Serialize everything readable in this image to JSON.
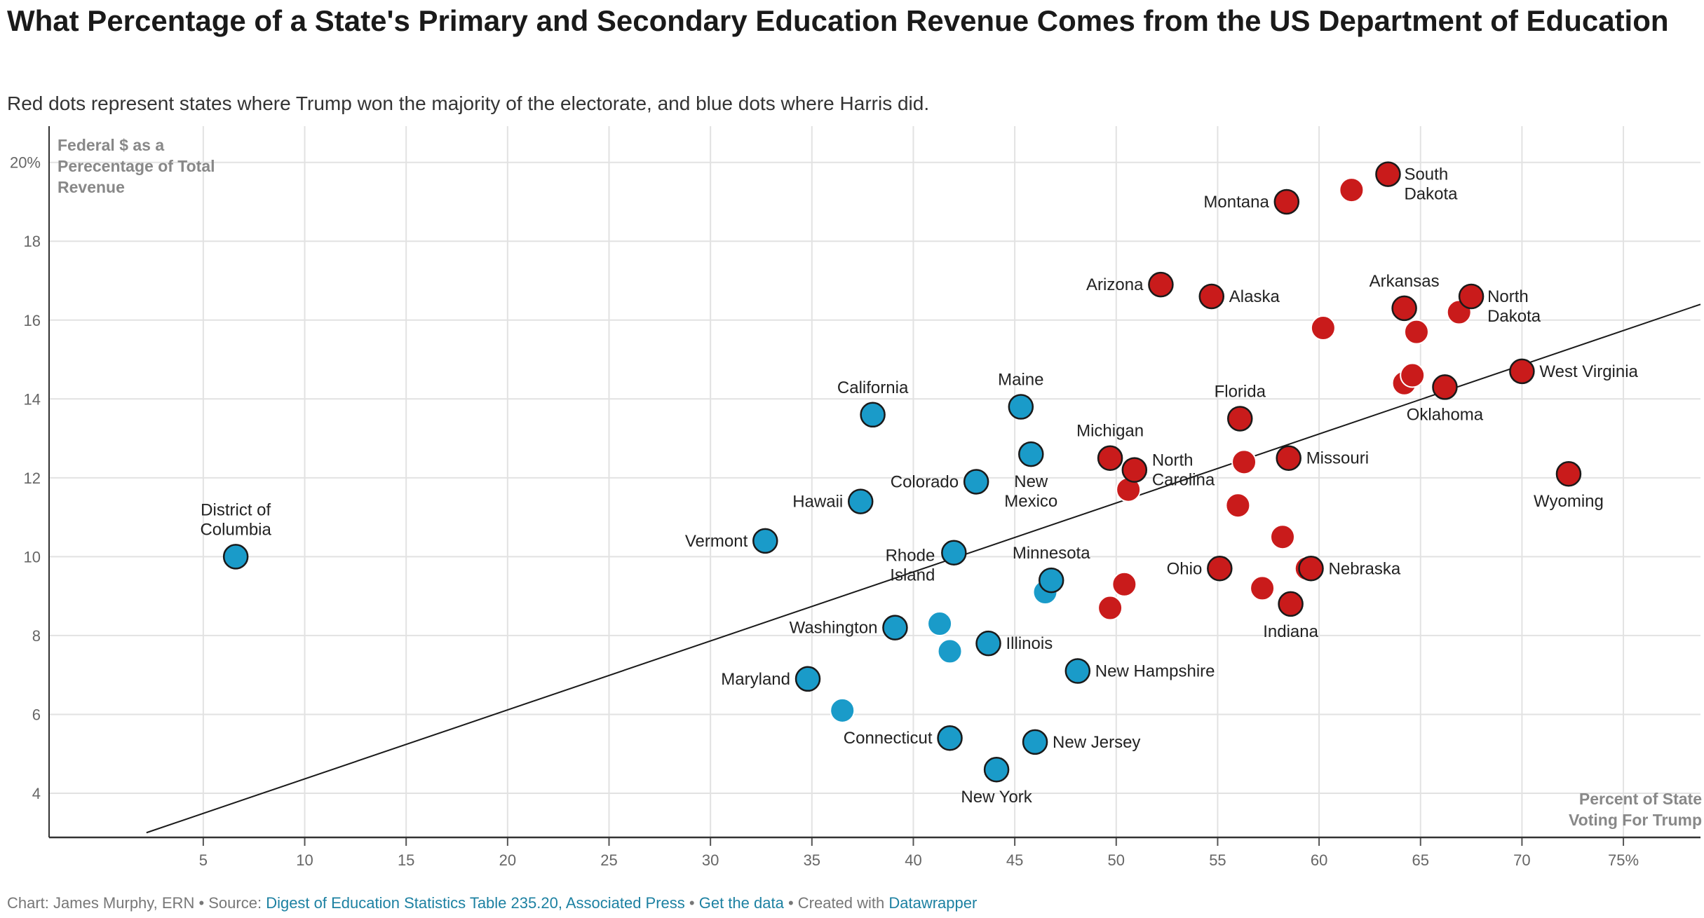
{
  "title": "What Percentage of a State's Primary and Secondary Education Revenue Comes from the US Department of Education",
  "subtitle": "Red dots represent states where Trump won the majority of the electorate, and blue dots where Harris did.",
  "footer": {
    "prefix": "Chart: James Murphy, ERN • Source: ",
    "source": "Digest of Education Statistics Table 235.20, Associated Press",
    "sep1": " • ",
    "getdata": "Get the data",
    "sep2": " • Created with ",
    "tool": "Datawrapper"
  },
  "colors": {
    "trump": "#c91b1b",
    "harris": "#1a9bc9",
    "grid": "#e2e2e2"
  },
  "chart_data": {
    "type": "scatter",
    "xlabel": [
      "Percent of State",
      "Voting For Trump"
    ],
    "ylabel": [
      "Federal $ as a",
      "Perecentage of Total",
      "Revenue"
    ],
    "xlim": [
      0,
      80
    ],
    "ylim": [
      3,
      21
    ],
    "xticks": [
      5,
      10,
      15,
      20,
      25,
      30,
      35,
      40,
      45,
      50,
      55,
      60,
      65,
      70,
      75
    ],
    "xtick_labels": [
      "5",
      "10",
      "15",
      "20",
      "25",
      "30",
      "35",
      "40",
      "45",
      "50",
      "55",
      "60",
      "65",
      "70",
      "75%"
    ],
    "yticks": [
      4,
      6,
      8,
      10,
      12,
      14,
      16,
      18,
      20
    ],
    "ytick_labels": [
      "4",
      "6",
      "8",
      "10",
      "12",
      "14",
      "16",
      "18",
      "20%"
    ],
    "grid": true,
    "trendline": [
      [
        2.2,
        3.0
      ],
      [
        78.8,
        16.4
      ]
    ],
    "points": [
      {
        "x": 6.6,
        "y": 10.0,
        "party": "harris",
        "label": [
          "District of",
          "Columbia"
        ],
        "pos": "above"
      },
      {
        "x": 32.7,
        "y": 10.4,
        "party": "harris",
        "label": [
          "Vermont"
        ],
        "pos": "left"
      },
      {
        "x": 34.8,
        "y": 6.9,
        "party": "harris",
        "label": [
          "Maryland"
        ],
        "pos": "left"
      },
      {
        "x": 36.5,
        "y": 6.1,
        "party": "harris",
        "label": [],
        "pos": "none"
      },
      {
        "x": 37.4,
        "y": 11.4,
        "party": "harris",
        "label": [
          "Hawaii"
        ],
        "pos": "left"
      },
      {
        "x": 38.0,
        "y": 13.6,
        "party": "harris",
        "label": [
          "California"
        ],
        "pos": "above"
      },
      {
        "x": 39.1,
        "y": 8.2,
        "party": "harris",
        "label": [
          "Washington"
        ],
        "pos": "left"
      },
      {
        "x": 41.3,
        "y": 8.3,
        "party": "harris",
        "label": [],
        "pos": "none"
      },
      {
        "x": 41.8,
        "y": 7.6,
        "party": "harris",
        "label": [],
        "pos": "none"
      },
      {
        "x": 41.8,
        "y": 5.4,
        "party": "harris",
        "label": [
          "Connecticut"
        ],
        "pos": "left"
      },
      {
        "x": 42.0,
        "y": 10.1,
        "party": "harris",
        "label": [
          "Rhode",
          "Island"
        ],
        "pos": "belowleft"
      },
      {
        "x": 43.1,
        "y": 11.9,
        "party": "harris",
        "label": [
          "Colorado"
        ],
        "pos": "left"
      },
      {
        "x": 43.7,
        "y": 7.8,
        "party": "harris",
        "label": [
          "Illinois"
        ],
        "pos": "right"
      },
      {
        "x": 44.1,
        "y": 4.6,
        "party": "harris",
        "label": [
          "New York"
        ],
        "pos": "below"
      },
      {
        "x": 45.3,
        "y": 13.8,
        "party": "harris",
        "label": [
          "Maine"
        ],
        "pos": "above"
      },
      {
        "x": 45.8,
        "y": 12.6,
        "party": "harris",
        "label": [
          "New",
          "Mexico"
        ],
        "pos": "below"
      },
      {
        "x": 46.0,
        "y": 5.3,
        "party": "harris",
        "label": [
          "New Jersey"
        ],
        "pos": "right"
      },
      {
        "x": 46.5,
        "y": 9.1,
        "party": "harris",
        "label": [],
        "pos": "none"
      },
      {
        "x": 46.8,
        "y": 9.4,
        "party": "harris",
        "label": [
          "Minnesota"
        ],
        "pos": "above"
      },
      {
        "x": 48.1,
        "y": 7.1,
        "party": "harris",
        "label": [
          "New Hampshire"
        ],
        "pos": "right"
      },
      {
        "x": 49.7,
        "y": 8.7,
        "party": "trump",
        "label": [],
        "pos": "none"
      },
      {
        "x": 49.7,
        "y": 12.5,
        "party": "trump",
        "label": [
          "Michigan"
        ],
        "pos": "above"
      },
      {
        "x": 50.4,
        "y": 9.3,
        "party": "trump",
        "label": [],
        "pos": "none"
      },
      {
        "x": 50.6,
        "y": 11.7,
        "party": "trump",
        "label": [],
        "pos": "none"
      },
      {
        "x": 50.9,
        "y": 12.2,
        "party": "trump",
        "label": [
          "North",
          "Carolina"
        ],
        "pos": "right"
      },
      {
        "x": 52.2,
        "y": 16.9,
        "party": "trump",
        "label": [
          "Arizona"
        ],
        "pos": "left"
      },
      {
        "x": 54.7,
        "y": 16.6,
        "party": "trump",
        "label": [
          "Alaska"
        ],
        "pos": "right"
      },
      {
        "x": 55.1,
        "y": 9.7,
        "party": "trump",
        "label": [
          "Ohio"
        ],
        "pos": "left"
      },
      {
        "x": 56.0,
        "y": 11.3,
        "party": "trump",
        "label": [],
        "pos": "none"
      },
      {
        "x": 56.1,
        "y": 13.5,
        "party": "trump",
        "label": [
          "Florida"
        ],
        "pos": "above"
      },
      {
        "x": 56.3,
        "y": 12.4,
        "party": "trump",
        "label": [],
        "pos": "none"
      },
      {
        "x": 57.2,
        "y": 9.2,
        "party": "trump",
        "label": [],
        "pos": "none"
      },
      {
        "x": 58.2,
        "y": 10.5,
        "party": "trump",
        "label": [],
        "pos": "none"
      },
      {
        "x": 58.4,
        "y": 19.0,
        "party": "trump",
        "label": [
          "Montana"
        ],
        "pos": "left"
      },
      {
        "x": 58.5,
        "y": 12.5,
        "party": "trump",
        "label": [
          "Missouri"
        ],
        "pos": "right"
      },
      {
        "x": 58.6,
        "y": 8.8,
        "party": "trump",
        "label": [
          "Indiana"
        ],
        "pos": "below"
      },
      {
        "x": 59.4,
        "y": 9.7,
        "party": "trump",
        "label": [],
        "pos": "none"
      },
      {
        "x": 59.6,
        "y": 9.7,
        "party": "trump",
        "label": [
          "Nebraska"
        ],
        "pos": "right"
      },
      {
        "x": 60.2,
        "y": 15.8,
        "party": "trump",
        "label": [],
        "pos": "none"
      },
      {
        "x": 61.6,
        "y": 19.3,
        "party": "trump",
        "label": [],
        "pos": "none"
      },
      {
        "x": 63.4,
        "y": 19.7,
        "party": "trump",
        "label": [
          "South",
          "Dakota"
        ],
        "pos": "right2"
      },
      {
        "x": 64.2,
        "y": 14.4,
        "party": "trump",
        "label": [],
        "pos": "none"
      },
      {
        "x": 64.2,
        "y": 16.3,
        "party": "trump",
        "label": [
          "Arkansas"
        ],
        "pos": "above"
      },
      {
        "x": 64.6,
        "y": 14.6,
        "party": "trump",
        "label": [],
        "pos": "none"
      },
      {
        "x": 64.8,
        "y": 15.7,
        "party": "trump",
        "label": [],
        "pos": "none"
      },
      {
        "x": 66.2,
        "y": 14.3,
        "party": "trump",
        "label": [
          "Oklahoma"
        ],
        "pos": "below"
      },
      {
        "x": 66.9,
        "y": 16.2,
        "party": "trump",
        "label": [],
        "pos": "none"
      },
      {
        "x": 67.5,
        "y": 16.6,
        "party": "trump",
        "label": [
          "North",
          "Dakota"
        ],
        "pos": "right2"
      },
      {
        "x": 70.0,
        "y": 14.7,
        "party": "trump",
        "label": [
          "West Virginia"
        ],
        "pos": "right"
      },
      {
        "x": 72.3,
        "y": 12.1,
        "party": "trump",
        "label": [
          "Wyoming"
        ],
        "pos": "below"
      }
    ]
  }
}
